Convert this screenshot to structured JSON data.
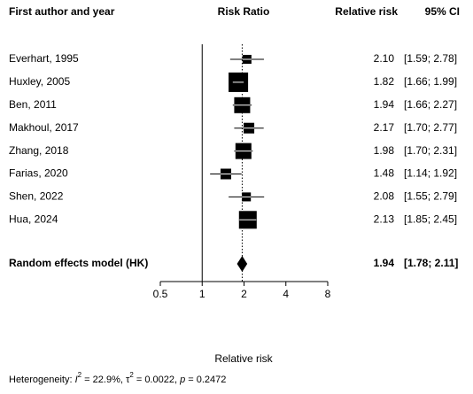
{
  "chart_data": {
    "type": "forest",
    "column_headers": {
      "study": "First author and year",
      "plot": "Risk Ratio",
      "estimate": "Relative risk",
      "ci": "95% CI"
    },
    "x_label": "Relative risk",
    "log_scale": true,
    "xlim": [
      0.5,
      8
    ],
    "xticks": [
      0.5,
      1,
      2,
      4,
      8
    ],
    "color": "#000000",
    "categories": [
      "Everhart, 1995",
      "Huxley, 2005",
      "Ben, 2011",
      "Makhoul, 2017",
      "Zhang, 2018",
      "Farias, 2020",
      "Shen, 2022",
      "Hua, 2024"
    ],
    "values": [
      2.1,
      1.82,
      1.94,
      2.17,
      1.98,
      1.48,
      2.08,
      2.13
    ],
    "value_labels": [
      "2.10",
      "1.82",
      "1.94",
      "2.17",
      "1.98",
      "1.48",
      "2.08",
      "2.13"
    ],
    "ci_lower": [
      1.59,
      1.66,
      1.66,
      1.7,
      1.7,
      1.14,
      1.55,
      1.85
    ],
    "ci_upper": [
      2.78,
      1.99,
      2.27,
      2.77,
      2.31,
      1.92,
      2.79,
      2.45
    ],
    "ci_labels": [
      "[1.59; 2.78]",
      "[1.66; 1.99]",
      "[1.66; 2.27]",
      "[1.70; 2.77]",
      "[1.70; 2.31]",
      "[1.14; 1.92]",
      "[1.55; 2.79]",
      "[1.85; 2.45]"
    ],
    "weights": [
      5.0,
      24.0,
      16.0,
      7.1,
      16.0,
      7.1,
      5.0,
      19.8
    ],
    "model": {
      "name": "Random effects model (HK)",
      "value": 1.94,
      "value_label": "1.94",
      "ci_lower": 1.78,
      "ci_upper": 2.11,
      "ci_label": "[1.78; 2.11]"
    },
    "heterogeneity": {
      "prefix": "Heterogeneity: ",
      "i2_symbol": "I",
      "sup": "2",
      "i2_text": " = 22.9%, ",
      "tau_symbol": "τ",
      "tau_text": " = 0.0022, ",
      "p_symbol": "p",
      "p_text": " = 0.2472"
    }
  }
}
